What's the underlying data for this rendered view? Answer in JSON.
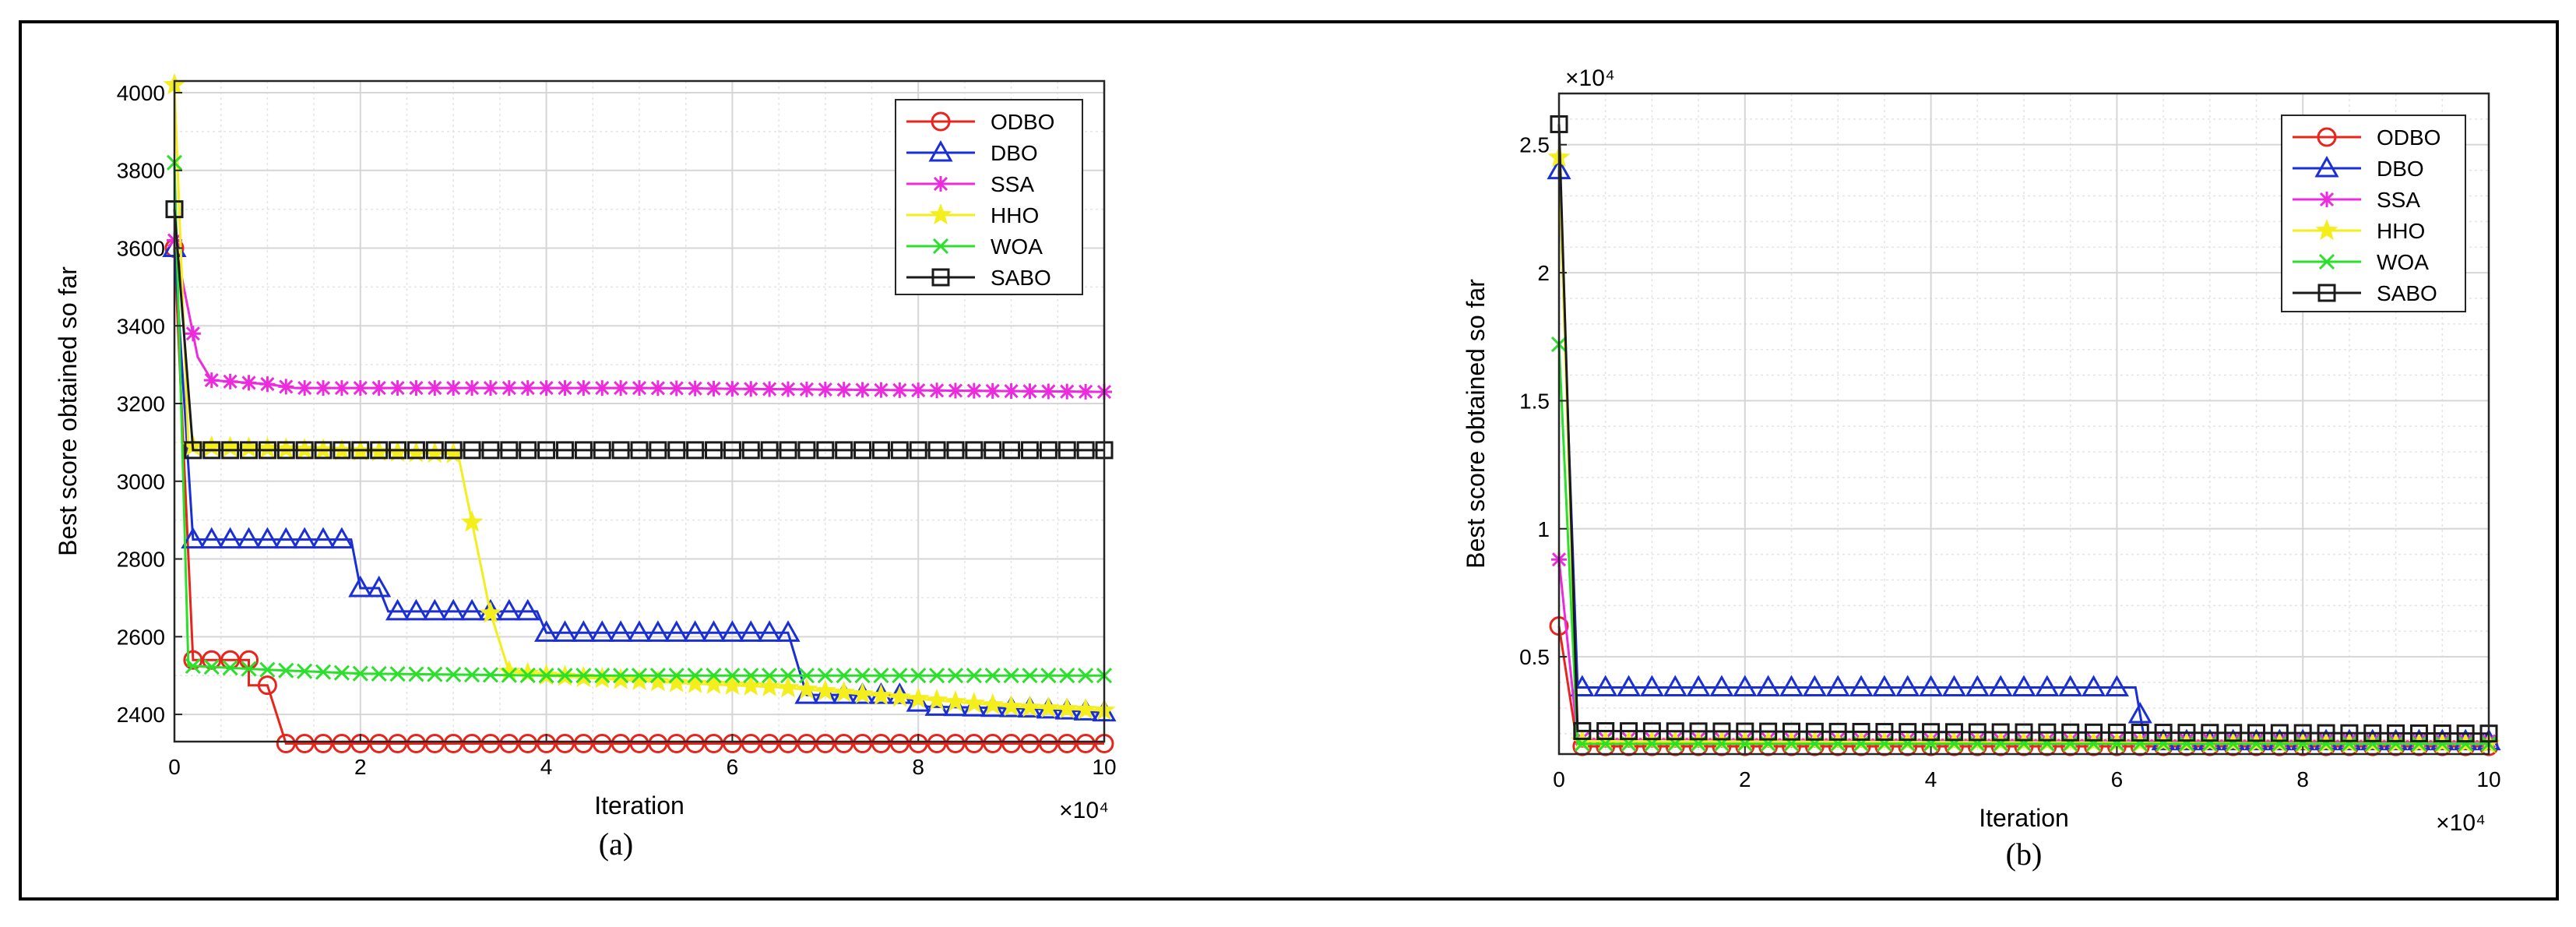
{
  "colors": {
    "ODBO": "#e8241c",
    "DBO": "#1a2fd4",
    "SSA": "#ec2bdc",
    "HHO": "#f4ee1c",
    "WOA": "#2ae02a",
    "SABO": "#1a1a1a"
  },
  "chart_data": [
    {
      "type": "line",
      "subcaption": "(a)",
      "xlabel": "Iteration",
      "ylabel": "Best score obtained so far",
      "x_multiplier": "×10⁴",
      "xlim": [
        0,
        10
      ],
      "ylim": [
        2330,
        4030
      ],
      "x_ticks": [
        "0",
        "2",
        "4",
        "6",
        "8",
        "10"
      ],
      "y_ticks": [
        "2400",
        "2600",
        "2800",
        "3000",
        "3200",
        "3400",
        "3600",
        "3800",
        "4000"
      ],
      "x_tick_values": [
        0,
        2,
        4,
        6,
        8,
        10
      ],
      "y_tick_values": [
        2400,
        2600,
        2800,
        3000,
        3200,
        3400,
        3600,
        3800,
        4000
      ],
      "legend_position": "top-right",
      "series": [
        {
          "name": "ODBO",
          "marker": "circle",
          "points": [
            [
              0,
              3600
            ],
            [
              0.2,
              2540
            ],
            [
              0.8,
              2540
            ],
            [
              0.8,
              2475
            ],
            [
              1.0,
              2475
            ],
            [
              1.2,
              2325
            ],
            [
              10,
              2325
            ]
          ]
        },
        {
          "name": "DBO",
          "marker": "triangle",
          "points": [
            [
              0,
              3600
            ],
            [
              0.2,
              2850
            ],
            [
              1.9,
              2850
            ],
            [
              2.0,
              2725
            ],
            [
              2.2,
              2725
            ],
            [
              2.3,
              2665
            ],
            [
              3.9,
              2665
            ],
            [
              4.0,
              2610
            ],
            [
              6.6,
              2610
            ],
            [
              6.8,
              2450
            ],
            [
              7.8,
              2450
            ],
            [
              8.1,
              2420
            ],
            [
              9.2,
              2415
            ],
            [
              10,
              2405
            ]
          ]
        },
        {
          "name": "SSA",
          "marker": "star",
          "points": [
            [
              0,
              3620
            ],
            [
              0.25,
              3320
            ],
            [
              0.4,
              3260
            ],
            [
              1.0,
              3250
            ],
            [
              1.3,
              3240
            ],
            [
              5,
              3240
            ],
            [
              10,
              3230
            ]
          ]
        },
        {
          "name": "HHO",
          "marker": "pentagram",
          "points": [
            [
              0,
              4020
            ],
            [
              0.15,
              3090
            ],
            [
              3.05,
              3070
            ],
            [
              3.4,
              2660
            ],
            [
              3.6,
              2510
            ],
            [
              4.0,
              2500
            ],
            [
              5.5,
              2480
            ],
            [
              6.5,
              2470
            ],
            [
              8,
              2440
            ],
            [
              9,
              2420
            ],
            [
              10,
              2410
            ]
          ]
        },
        {
          "name": "WOA",
          "marker": "x",
          "points": [
            [
              0,
              3820
            ],
            [
              0.15,
              2525
            ],
            [
              1.0,
              2515
            ],
            [
              2.0,
              2505
            ],
            [
              4.0,
              2500
            ],
            [
              10,
              2500
            ]
          ]
        },
        {
          "name": "SABO",
          "marker": "square",
          "points": [
            [
              0,
              3700
            ],
            [
              0.2,
              3080
            ],
            [
              10,
              3080
            ]
          ]
        }
      ]
    },
    {
      "type": "line",
      "subcaption": "(b)",
      "xlabel": "Iteration",
      "ylabel": "Best score obtained so far",
      "x_multiplier": "×10⁴",
      "y_multiplier": "×10⁴",
      "xlim": [
        0,
        10
      ],
      "ylim": [
        0.12,
        2.7
      ],
      "x_ticks": [
        "0",
        "2",
        "4",
        "6",
        "8",
        "10"
      ],
      "y_ticks": [
        "0.5",
        "1",
        "1.5",
        "2",
        "2.5"
      ],
      "x_tick_values": [
        0,
        2,
        4,
        6,
        8,
        10
      ],
      "y_tick_values": [
        0.5,
        1,
        1.5,
        2,
        2.5
      ],
      "legend_position": "top-right",
      "series": [
        {
          "name": "ODBO",
          "marker": "circle",
          "points": [
            [
              0,
              0.62
            ],
            [
              0.2,
              0.15
            ],
            [
              10,
              0.15
            ]
          ]
        },
        {
          "name": "DBO",
          "marker": "triangle",
          "points": [
            [
              0,
              2.4
            ],
            [
              0.2,
              0.38
            ],
            [
              6.2,
              0.38
            ],
            [
              6.3,
              0.17
            ],
            [
              10,
              0.17
            ]
          ]
        },
        {
          "name": "SSA",
          "marker": "star",
          "points": [
            [
              0,
              0.88
            ],
            [
              0.2,
              0.18
            ],
            [
              10,
              0.17
            ]
          ]
        },
        {
          "name": "HHO",
          "marker": "pentagram",
          "points": [
            [
              0,
              2.45
            ],
            [
              0.2,
              0.17
            ],
            [
              10,
              0.16
            ]
          ]
        },
        {
          "name": "WOA",
          "marker": "x",
          "points": [
            [
              0,
              1.72
            ],
            [
              0.2,
              0.16
            ],
            [
              10,
              0.16
            ]
          ]
        },
        {
          "name": "SABO",
          "marker": "square",
          "points": [
            [
              0,
              2.58
            ],
            [
              0.2,
              0.21
            ],
            [
              5,
              0.205
            ],
            [
              10,
              0.2
            ]
          ]
        }
      ]
    }
  ]
}
